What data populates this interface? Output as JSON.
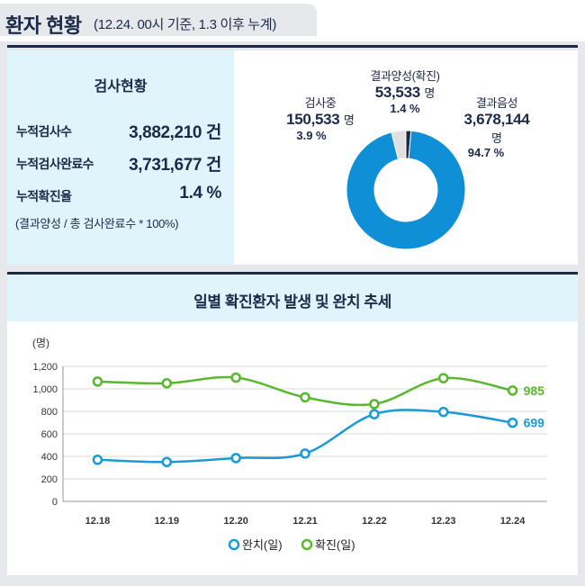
{
  "header": {
    "title": "환자 현황",
    "subtitle": "(12.24. 00시 기준, 1.3 이후 누계)"
  },
  "stats": {
    "title": "검사현황",
    "items": [
      {
        "label": "누적검사수",
        "value": "3,882,210 건"
      },
      {
        "label": "누적검사완료수",
        "value": "3,731,677 건"
      },
      {
        "label": "누적확진율",
        "value": "1.4 %"
      }
    ],
    "note": "(결과양성 / 총 검사완료수 * 100%)"
  },
  "donut": {
    "testing": {
      "name": "검사중",
      "value": "150,533",
      "unit": "명",
      "pct": "3.9 %",
      "fraction": 0.039,
      "color": "#e0e0e0"
    },
    "positive": {
      "name": "결과양성(확진)",
      "value": "53,533",
      "unit": "명",
      "pct": "1.4 %",
      "fraction": 0.014,
      "color": "#1b2a48"
    },
    "negative": {
      "name": "결과음성",
      "value": "3,678,144",
      "unit": "명",
      "pct": "94.7 %",
      "fraction": 0.947,
      "color": "#0f8fd6"
    }
  },
  "chart_title": "일별 확진환자 발생 및 완치 추세",
  "chart_data": {
    "type": "line",
    "ylabel": "(명)",
    "ylim": [
      0,
      1200
    ],
    "yticks": [
      "0",
      "200",
      "400",
      "600",
      "800",
      "1,000",
      "1,200"
    ],
    "categories": [
      "12.18",
      "12.19",
      "12.20",
      "12.21",
      "12.22",
      "12.23",
      "12.24"
    ],
    "series": [
      {
        "name": "완치(일)",
        "values": [
          370,
          350,
          385,
          425,
          775,
          795,
          699
        ],
        "color": "#1b9ad6",
        "end_label": "699"
      },
      {
        "name": "확진(일)",
        "values": [
          1065,
          1050,
          1100,
          925,
          865,
          1095,
          985
        ],
        "color": "#5ab82e",
        "end_label": "985"
      }
    ],
    "grid": true,
    "legend": "bottom-center"
  }
}
